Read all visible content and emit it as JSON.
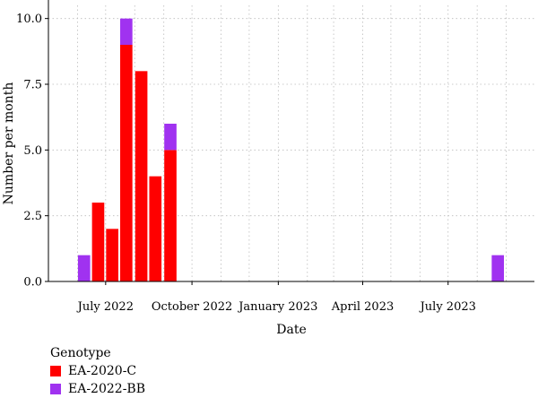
{
  "chart_data": {
    "type": "bar",
    "stacked": true,
    "xlabel": "Date",
    "ylabel": "Number per month",
    "ylim": [
      0,
      10.5
    ],
    "yticks": [
      "0.0",
      "2.5",
      "5.0",
      "7.5",
      "10.0"
    ],
    "yticks_values": [
      0,
      2.5,
      5,
      7.5,
      10
    ],
    "xticks": [
      "July 2022",
      "October 2022",
      "January 2023",
      "April 2023",
      "July 2023"
    ],
    "xticks_dates": [
      "2022-07-01",
      "2022-10-01",
      "2023-01-01",
      "2023-04-01",
      "2023-07-01"
    ],
    "xlim": [
      "2022-05-01",
      "2023-10-01"
    ],
    "grid": true,
    "legend_position": "bottom-left",
    "legend_title": "Genotype",
    "bar_days": 14,
    "series": [
      {
        "name": "EA-2020-C",
        "color": "#ff0000",
        "values": [
          {
            "x": "2022-06-16",
            "y": 3
          },
          {
            "x": "2022-07-01",
            "y": 2
          },
          {
            "x": "2022-07-16",
            "y": 9
          },
          {
            "x": "2022-08-01",
            "y": 8
          },
          {
            "x": "2022-08-16",
            "y": 4
          },
          {
            "x": "2022-09-01",
            "y": 5
          }
        ]
      },
      {
        "name": "EA-2022-BB",
        "color": "#a032f0",
        "values": [
          {
            "x": "2022-06-01",
            "y": 1
          },
          {
            "x": "2022-07-16",
            "y": 1
          },
          {
            "x": "2022-09-01",
            "y": 1
          },
          {
            "x": "2023-08-16",
            "y": 1
          }
        ]
      }
    ]
  }
}
